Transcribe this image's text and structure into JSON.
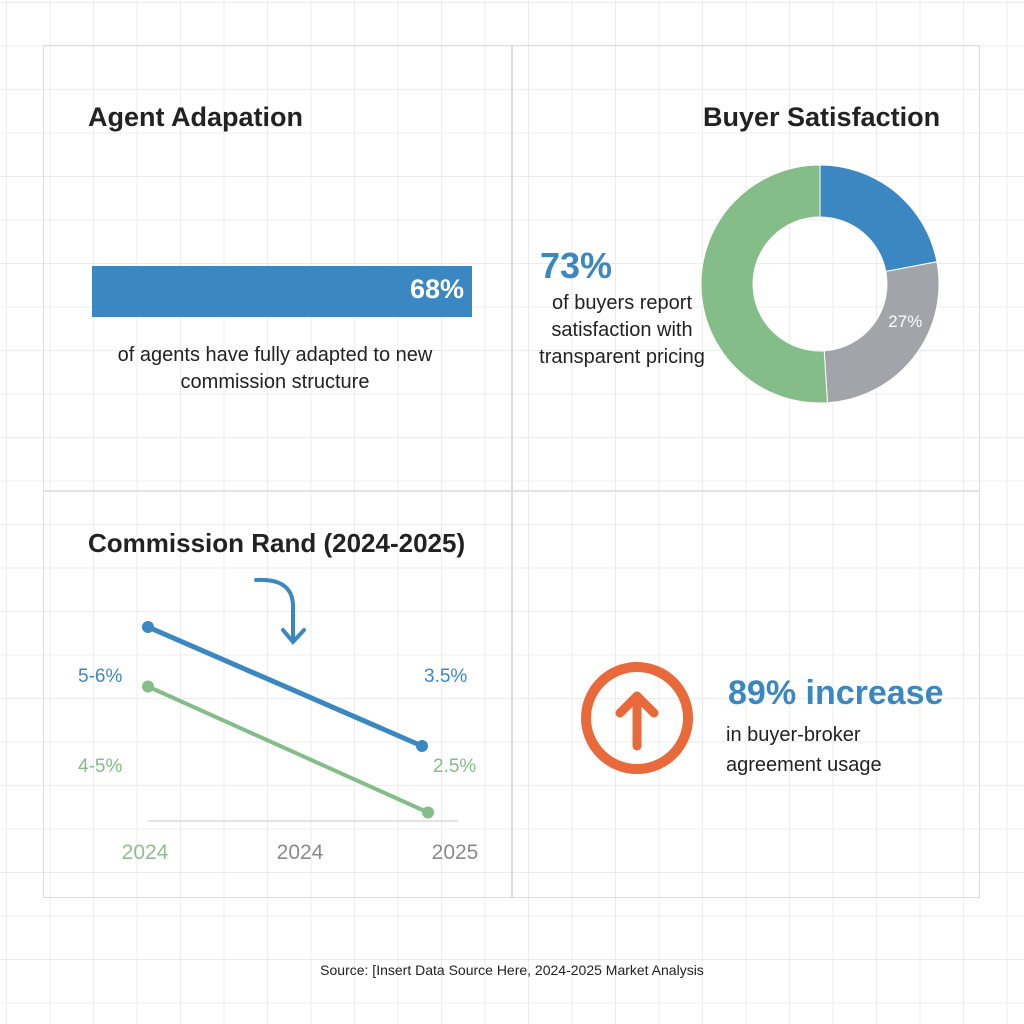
{
  "agent": {
    "title": "Agent Adapation",
    "value_label": "68%",
    "progress_percent": 68,
    "caption": "of agents have fully adapted to new commission structure",
    "color": "#3b87c2"
  },
  "buyer": {
    "title": "Buyer Satisfaction",
    "headline": "73%",
    "caption": "of buyers report satisfaction with transparent pricing"
  },
  "commission": {
    "title": "Commission Rand (2024-2025)"
  },
  "increase": {
    "headline": "89% increase",
    "caption": "in buyer-broker agreement usage",
    "icon": "arrow-up-circle-icon",
    "color": "#e8693a"
  },
  "source": "Source: [Insert Data Source Here, 2024-2025 Market Analysis",
  "chart_data": [
    {
      "type": "pie",
      "variant": "donut",
      "slices": [
        {
          "value": 22,
          "color": "#3b87c2",
          "label": ""
        },
        {
          "value": 27,
          "color": "#a1a4a8",
          "label": "27%"
        },
        {
          "value": 51,
          "color": "#84bd87",
          "label": ""
        }
      ]
    },
    {
      "type": "line",
      "categories": [
        "2024",
        "2024",
        "2025"
      ],
      "series": [
        {
          "color": "#3b87c2",
          "points": [
            {
              "x": 0,
              "y": 5.5,
              "label": "5-6%"
            },
            {
              "x": 2,
              "y": 3.5,
              "label": "3.5%"
            }
          ]
        },
        {
          "color": "#84bd87",
          "points": [
            {
              "x": 0,
              "y": 4.5,
              "label": "4-5%"
            },
            {
              "x": 2,
              "y": 2.5,
              "label": "2.5%"
            }
          ]
        }
      ],
      "grid": true
    }
  ]
}
